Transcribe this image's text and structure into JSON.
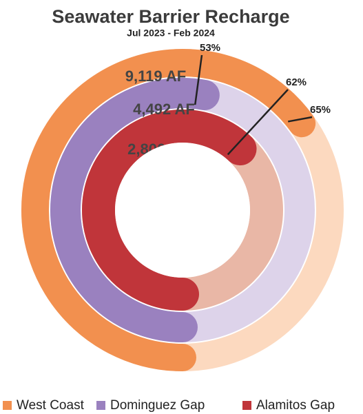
{
  "chart_data": {
    "type": "radial_bar",
    "title": "Seawater Barrier Recharge",
    "subtitle": "Jul 2023 - Feb 2024",
    "series": [
      {
        "name": "West Coast",
        "color": "#f2904f",
        "track_color": "#fcd9bf",
        "value": 65,
        "value_label": "65%",
        "amount": "9,119 AF"
      },
      {
        "name": "Dominguez Gap",
        "color": "#9a81bf",
        "track_color": "#ddd3ea",
        "value": 53,
        "value_label": "53%",
        "amount": "4,492 AF"
      },
      {
        "name": "Alamitos Gap",
        "color": "#c0353a",
        "track_color": "#e9b7a6",
        "value": 62,
        "value_label": "62%",
        "amount": "2,800 AF"
      }
    ]
  }
}
